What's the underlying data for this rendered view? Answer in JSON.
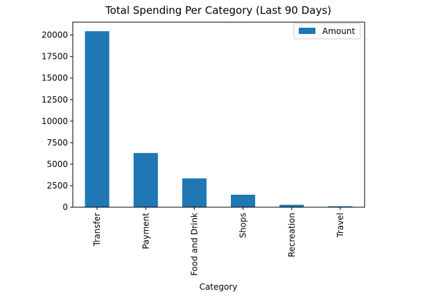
{
  "chart_data": {
    "type": "bar",
    "title": "Total Spending Per Category (Last 90 Days)",
    "xlabel": "Category",
    "ylabel": "",
    "categories": [
      "Transfer",
      "Payment",
      "Food and Drink",
      "Shops",
      "Recreation",
      "Travel"
    ],
    "series": [
      {
        "name": "Amount",
        "values": [
          20450,
          6300,
          3350,
          1450,
          280,
          110
        ],
        "color": "#1f77b4"
      }
    ],
    "ylim": [
      0,
      21500
    ],
    "yticks": [
      0,
      2500,
      5000,
      7500,
      10000,
      12500,
      15000,
      17500,
      20000
    ],
    "ytick_labels": [
      "0",
      "2500",
      "5000",
      "7500",
      "10000",
      "12500",
      "15000",
      "17500",
      "20000"
    ],
    "grid": false,
    "legend_position": "top-right"
  }
}
